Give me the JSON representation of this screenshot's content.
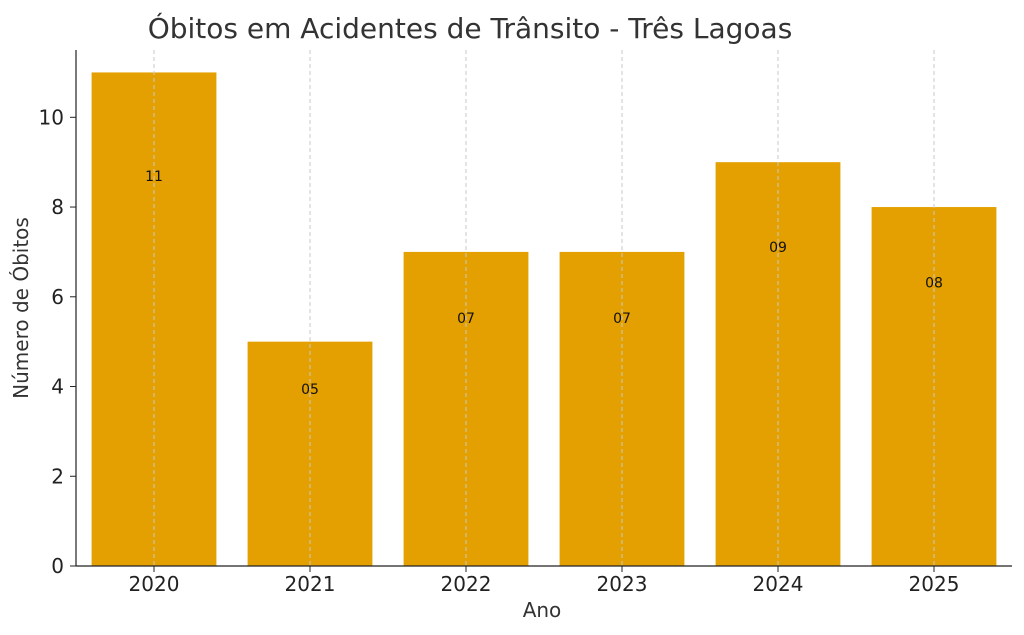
{
  "chart_data": {
    "type": "bar",
    "title": "Óbitos em Acidentes de Trânsito - Três Lagoas",
    "xlabel": "Ano",
    "ylabel": "Número de Óbitos",
    "categories": [
      "2020",
      "2021",
      "2022",
      "2023",
      "2024",
      "2025"
    ],
    "values": [
      11,
      5,
      7,
      7,
      9,
      8
    ],
    "data_labels": [
      "11",
      "05",
      "07",
      "07",
      "09",
      "08"
    ],
    "yticks": [
      "0",
      "2",
      "4",
      "6",
      "8",
      "10"
    ],
    "ylim": [
      0,
      11.5
    ],
    "bar_color": "#E3A000",
    "grid": "vertical dashed",
    "legend": "none"
  }
}
